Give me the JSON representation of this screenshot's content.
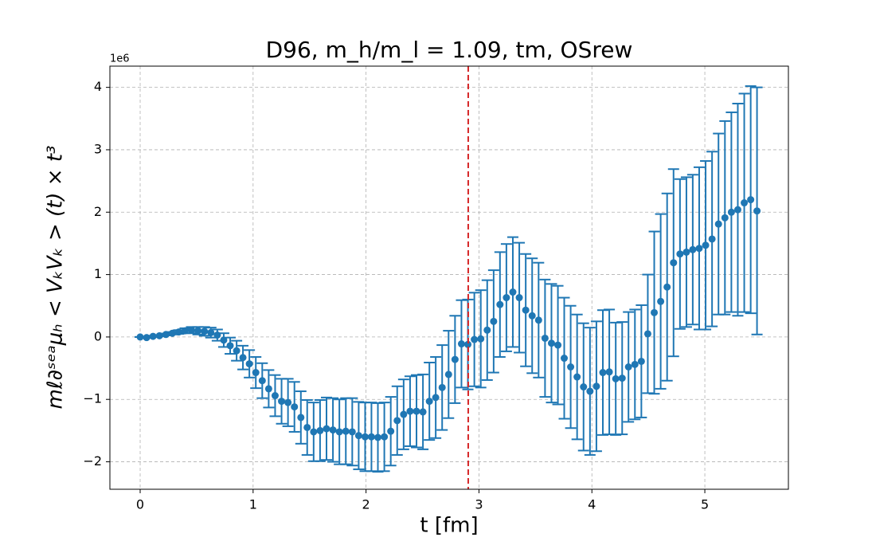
{
  "chart_data": {
    "type": "errorbar",
    "title": "D96, m_h/m_l = 1.09, tm, OSrew",
    "xlabel": "t [fm]",
    "ylabel": "mℓ∂ˢᵉᵃμₕ < VₖVₖ > (t) × t³",
    "y_offset_label": "1e6",
    "x": [
      0,
      0.057,
      0.114,
      0.171,
      0.228,
      0.285,
      0.341,
      0.398,
      0.455,
      0.512,
      0.569,
      0.626,
      0.683,
      0.74,
      0.797,
      0.854,
      0.91,
      0.967,
      1.024,
      1.081,
      1.138,
      1.195,
      1.252,
      1.309,
      1.366,
      1.423,
      1.479,
      1.536,
      1.593,
      1.65,
      1.707,
      1.764,
      1.821,
      1.878,
      1.935,
      1.992,
      2.048,
      2.105,
      2.162,
      2.219,
      2.276,
      2.333,
      2.39,
      2.447,
      2.504,
      2.561,
      2.617,
      2.674,
      2.731,
      2.788,
      2.845,
      2.902,
      2.959,
      3.016,
      3.073,
      3.13,
      3.186,
      3.243,
      3.3,
      3.357,
      3.414,
      3.471,
      3.528,
      3.585,
      3.642,
      3.699,
      3.755,
      3.812,
      3.869,
      3.926,
      3.983,
      4.04,
      4.097,
      4.154,
      4.211,
      4.268,
      4.324,
      4.381,
      4.438,
      4.495,
      4.552,
      4.609,
      4.666,
      4.723,
      4.78,
      4.837,
      4.893,
      4.95,
      5.007,
      5.064,
      5.121,
      5.178,
      5.235,
      5.292,
      5.349,
      5.406,
      5.462
    ],
    "values": [
      0,
      -0.01,
      0.01,
      0.02,
      0.04,
      0.06,
      0.08,
      0.1,
      0.11,
      0.1,
      0.09,
      0.07,
      0.03,
      -0.05,
      -0.14,
      -0.22,
      -0.33,
      -0.43,
      -0.57,
      -0.7,
      -0.83,
      -0.94,
      -1.03,
      -1.05,
      -1.12,
      -1.29,
      -1.45,
      -1.52,
      -1.5,
      -1.47,
      -1.49,
      -1.52,
      -1.51,
      -1.52,
      -1.58,
      -1.6,
      -1.6,
      -1.61,
      -1.6,
      -1.51,
      -1.34,
      -1.24,
      -1.19,
      -1.19,
      -1.2,
      -1.03,
      -0.97,
      -0.81,
      -0.6,
      -0.36,
      -0.11,
      -0.12,
      -0.04,
      -0.03,
      0.11,
      0.25,
      0.52,
      0.63,
      0.72,
      0.63,
      0.43,
      0.34,
      0.27,
      -0.02,
      -0.1,
      -0.13,
      -0.34,
      -0.48,
      -0.64,
      -0.8,
      -0.87,
      -0.79,
      -0.57,
      -0.56,
      -0.67,
      -0.66,
      -0.48,
      -0.44,
      -0.39,
      0.05,
      0.39,
      0.57,
      0.8,
      1.19,
      1.33,
      1.36,
      1.4,
      1.42,
      1.47,
      1.57,
      1.81,
      1.91,
      2.0,
      2.04,
      2.15,
      2.2,
      2.02
    ],
    "errors": [
      0,
      0.005,
      0.01,
      0.01,
      0.015,
      0.02,
      0.03,
      0.04,
      0.05,
      0.06,
      0.07,
      0.08,
      0.09,
      0.11,
      0.13,
      0.16,
      0.19,
      0.22,
      0.25,
      0.28,
      0.3,
      0.33,
      0.36,
      0.38,
      0.4,
      0.42,
      0.44,
      0.47,
      0.49,
      0.5,
      0.51,
      0.52,
      0.53,
      0.54,
      0.54,
      0.55,
      0.55,
      0.55,
      0.55,
      0.55,
      0.55,
      0.56,
      0.56,
      0.58,
      0.6,
      0.62,
      0.65,
      0.68,
      0.7,
      0.7,
      0.7,
      0.72,
      0.75,
      0.78,
      0.8,
      0.82,
      0.84,
      0.86,
      0.88,
      0.88,
      0.9,
      0.92,
      0.92,
      0.94,
      0.95,
      0.95,
      0.97,
      0.98,
      1.0,
      1.02,
      1.02,
      1.04,
      1.0,
      1.0,
      0.9,
      0.9,
      0.88,
      0.88,
      0.9,
      0.95,
      1.3,
      1.4,
      1.5,
      1.5,
      1.2,
      1.2,
      1.2,
      1.3,
      1.35,
      1.4,
      1.45,
      1.55,
      1.6,
      1.7,
      1.75,
      1.82,
      1.98
    ],
    "color": "#1f77b4",
    "vline": 2.905,
    "vline_color": "#d62728",
    "xlim": [
      -0.268,
      5.74
    ],
    "xticks": [
      0,
      1,
      2,
      3,
      4,
      5
    ],
    "ylim": [
      -2.44,
      4.34
    ],
    "yticks": [
      {
        "value": -2,
        "label": "−2"
      },
      {
        "value": -1,
        "label": "−1"
      },
      0,
      1,
      2,
      3,
      4
    ],
    "grid": true
  }
}
